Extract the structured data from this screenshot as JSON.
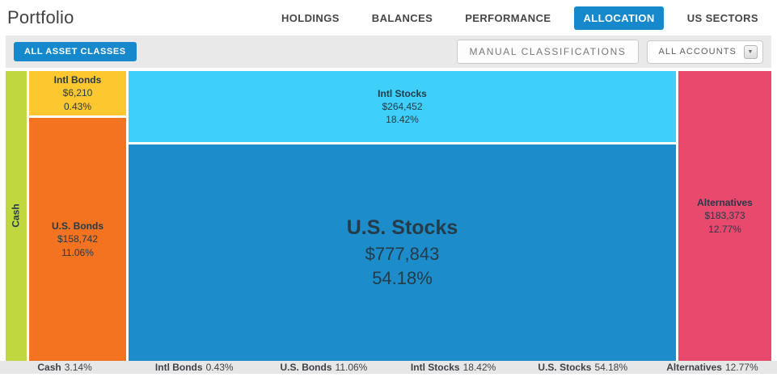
{
  "header": {
    "title": "Portfolio"
  },
  "nav": {
    "tabs": [
      {
        "label": "HOLDINGS",
        "active": false
      },
      {
        "label": "BALANCES",
        "active": false
      },
      {
        "label": "PERFORMANCE",
        "active": false
      },
      {
        "label": "ALLOCATION",
        "active": true
      },
      {
        "label": "US SECTORS",
        "active": false
      }
    ],
    "active_tab_color": "#1689cc"
  },
  "toolbar": {
    "asset_classes_button": "ALL ASSET CLASSES",
    "asset_classes_button_color": "#1689cc",
    "manual_classifications_button": "MANUAL CLASSIFICATIONS",
    "accounts_dropdown": {
      "value": "ALL ACCOUNTS",
      "icon": "chevron-down-icon",
      "icon_glyph": "▼"
    }
  },
  "chart_data": {
    "type": "treemap",
    "title": "Portfolio allocation by asset class",
    "segments": [
      {
        "name": "Cash",
        "percent": "3.14%",
        "percent_value": 3.14,
        "color": "#c1d740"
      },
      {
        "name": "Intl Bonds",
        "amount": "$6,210",
        "amount_value": 6210,
        "percent": "0.43%",
        "percent_value": 0.43,
        "color": "#fdc72f"
      },
      {
        "name": "U.S. Bonds",
        "amount": "$158,742",
        "amount_value": 158742,
        "percent": "11.06%",
        "percent_value": 11.06,
        "color": "#f37321"
      },
      {
        "name": "Intl Stocks",
        "amount": "$264,452",
        "amount_value": 264452,
        "percent": "18.42%",
        "percent_value": 18.42,
        "color": "#3ed0fa"
      },
      {
        "name": "U.S. Stocks",
        "amount": "$777,843",
        "amount_value": 777843,
        "percent": "54.18%",
        "percent_value": 54.18,
        "color": "#1d8ccb"
      },
      {
        "name": "Alternatives",
        "amount": "$183,373",
        "amount_value": 183373,
        "percent": "12.77%",
        "percent_value": 12.77,
        "color": "#e84a6e"
      }
    ],
    "legend_position": "bottom"
  }
}
